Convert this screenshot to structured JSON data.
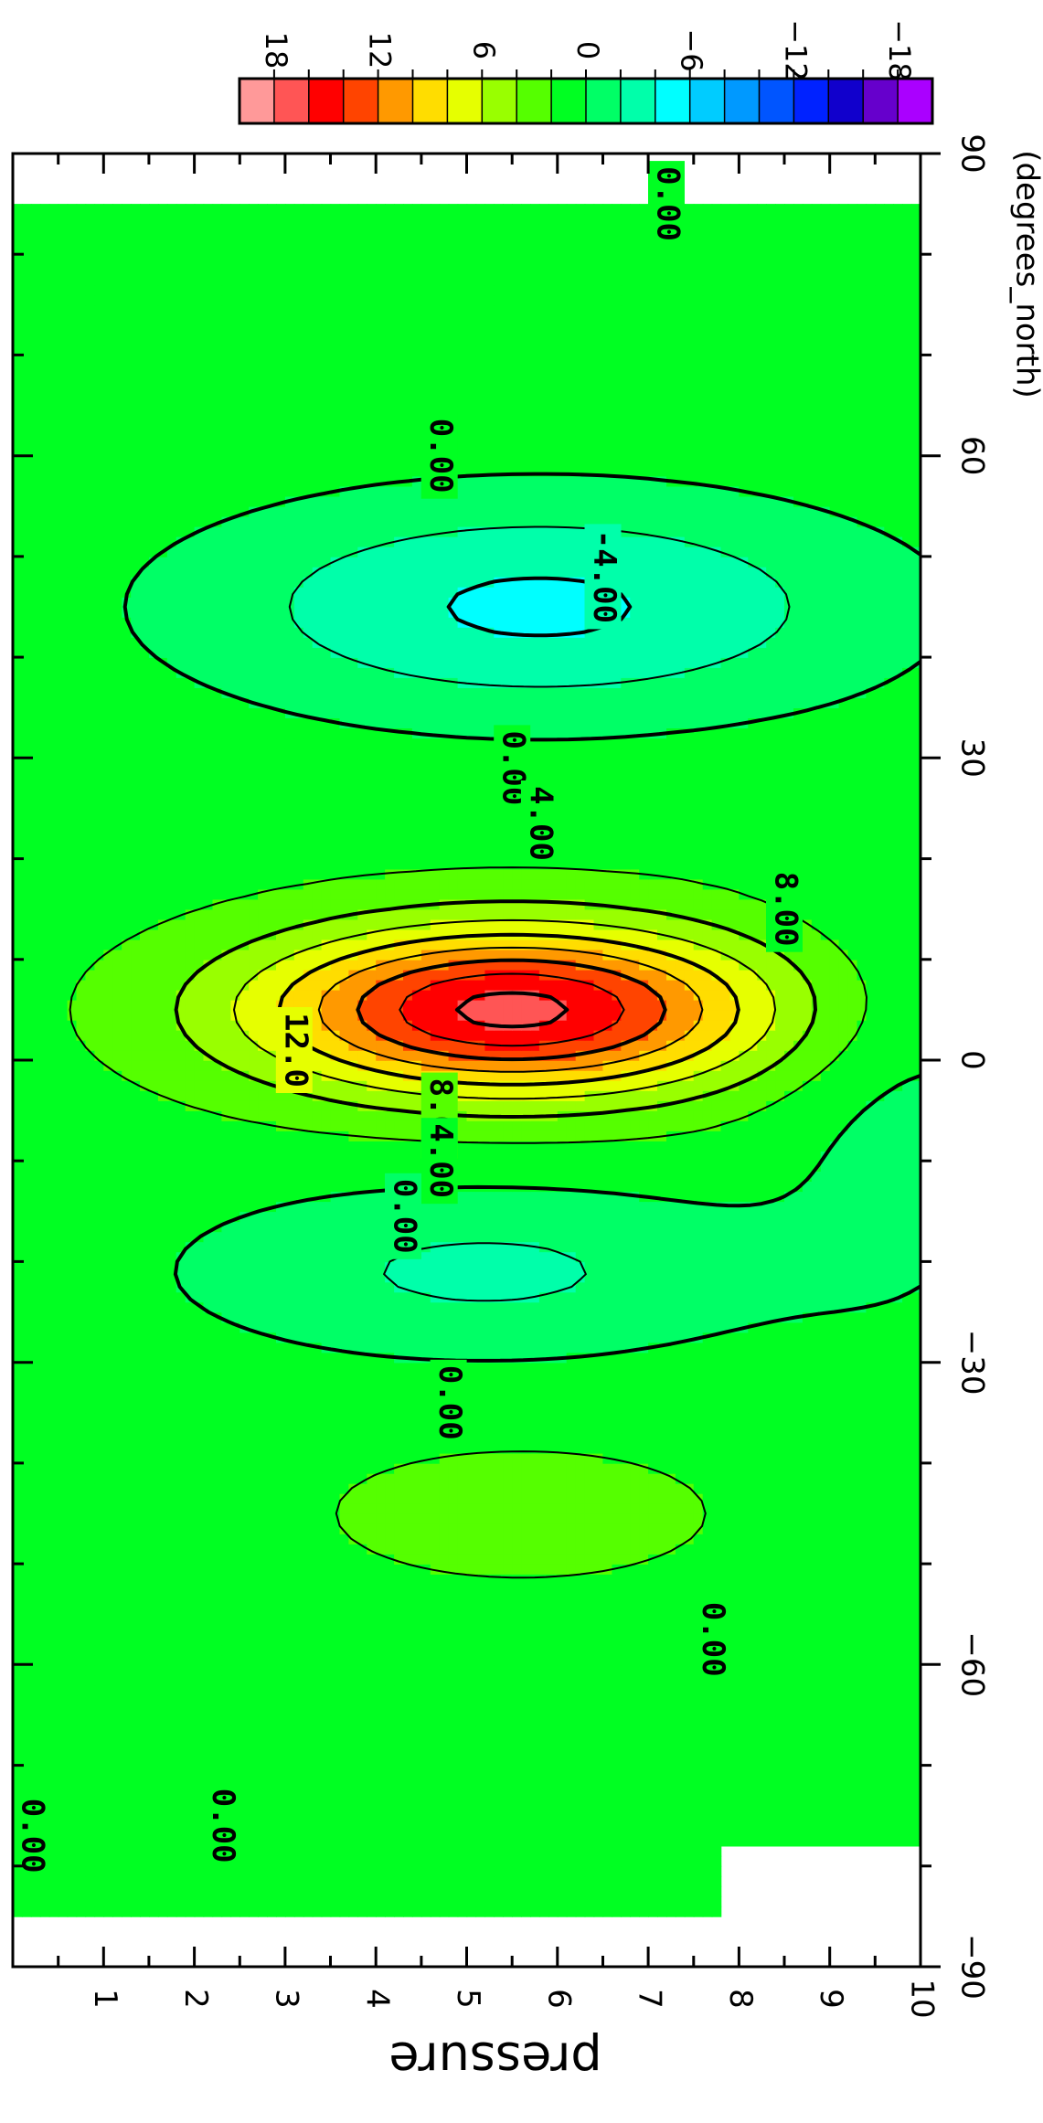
{
  "chart_data": {
    "type": "heatmap",
    "title": "",
    "xlabel": "(degrees_north)",
    "ylabel": "pressure",
    "xlim": [
      -90,
      90
    ],
    "ylim": [
      10,
      0
    ],
    "orientation": "rotated 90 degrees clockwise",
    "x_ticks": [
      -90,
      -60,
      -30,
      0,
      30,
      60,
      90
    ],
    "x_tick_labels": [
      "−90",
      "−60",
      "−30",
      "0",
      "30",
      "60",
      "90"
    ],
    "y_ticks": [
      1,
      2,
      3,
      4,
      5,
      6,
      7,
      8,
      9,
      10
    ],
    "y_tick_labels": [
      "1",
      "2",
      "3",
      "4",
      "5",
      "6",
      "7",
      "8",
      "9",
      "10"
    ],
    "colorbar": {
      "tick_labels": [
        "18",
        "12",
        "6",
        "0",
        "−6",
        "−12",
        "−18"
      ],
      "levels_from_high": [
        20,
        18,
        16,
        14,
        12,
        10,
        8,
        6,
        4,
        2,
        0,
        -2,
        -4,
        -6,
        -8,
        -10,
        -12,
        -14,
        -16,
        -18,
        -20
      ],
      "colors": [
        "#ff9999",
        "#ff5555",
        "#ff0000",
        "#ff4400",
        "#ff9900",
        "#ffdd00",
        "#e6ff00",
        "#99ff00",
        "#55ff00",
        "#00ff22",
        "#00ff66",
        "#00ffaa",
        "#00ffff",
        "#00ccff",
        "#0099ff",
        "#0055ff",
        "#0022ff",
        "#1100cc",
        "#6600cc",
        "#aa00ff"
      ]
    },
    "features": [
      {
        "type": "max",
        "center_lat": 6,
        "center_p": 5.5,
        "value": 16,
        "lat_range": [
          -5,
          15
        ],
        "p_range": [
          2.7,
          8.5
        ]
      },
      {
        "type": "min",
        "center_lat": 45,
        "center_p": 5.5,
        "value": -4,
        "lat_range": [
          37,
          55
        ],
        "p_range": [
          2.6,
          9.4
        ]
      },
      {
        "type": "min",
        "center_lat": -22,
        "center_p": 5.3,
        "value": -2,
        "lat_range": [
          -29,
          -15
        ],
        "p_range": [
          2.6,
          8
        ]
      },
      {
        "type": "max",
        "center_lat": -45,
        "center_p": 5.6,
        "value": 2,
        "lat_range": [
          -52,
          -39
        ],
        "p_range": [
          3,
          8.3
        ]
      }
    ],
    "contour_labels": [
      {
        "text": "0.00",
        "lat": 85,
        "p": 7.2
      },
      {
        "text": "0.00",
        "lat": 60,
        "p": 4.7
      },
      {
        "text": "-4.00",
        "lat": 48,
        "p": 6.5
      },
      {
        "text": "0.00",
        "lat": 29,
        "p": 5.5
      },
      {
        "text": "4.00",
        "lat": 23.5,
        "p": 5.8
      },
      {
        "text": "8.00",
        "lat": 15,
        "p": 8.5
      },
      {
        "text": "12.0",
        "lat": 1,
        "p": 3.1
      },
      {
        "text": "8.00",
        "lat": -5.5,
        "p": 4.7
      },
      {
        "text": "4.00",
        "lat": -10,
        "p": 4.7
      },
      {
        "text": "0.00",
        "lat": -15.5,
        "p": 4.3
      },
      {
        "text": "0.00",
        "lat": -34,
        "p": 4.8
      },
      {
        "text": "0.00",
        "lat": -57.5,
        "p": 7.7
      },
      {
        "text": "0.00",
        "lat": -76,
        "p": 2.3
      },
      {
        "text": "0.00",
        "lat": -77,
        "p": 0.2
      }
    ]
  }
}
